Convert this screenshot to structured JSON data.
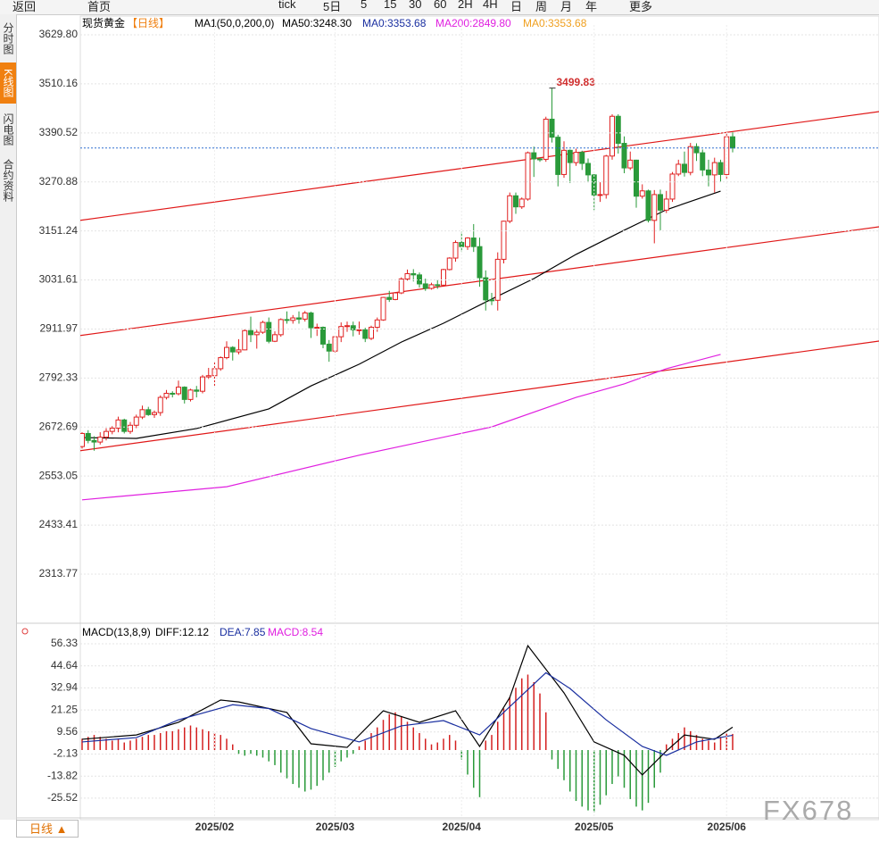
{
  "toolbar": [
    "返回",
    "首页",
    "tick",
    "5日",
    "5",
    "15",
    "30",
    "60",
    "2H",
    "4H",
    "日",
    "周",
    "月",
    "年",
    "更多"
  ],
  "sidebar": [
    "分时图",
    "K线图",
    "闪电图",
    "合约资料"
  ],
  "bottom_tab": "日线 ▲",
  "watermark": "FX678",
  "chart_data": [
    {
      "type": "candlestick",
      "title": "现货黄金",
      "period": "【日线】",
      "indicator": "MA1(50,0,200,0)",
      "legend": [
        {
          "name": "MA50:3248.30",
          "color": "#000000"
        },
        {
          "name": "MA0:3353.68",
          "color": "#1a2fa0"
        },
        {
          "name": "MA200:2849.80",
          "color": "#e020e0"
        },
        {
          "name": "MA0:3353.68",
          "color": "#f0a020"
        }
      ],
      "annotation": "3499.83",
      "up_color": "#e02020",
      "down_color": "#2a9a3a",
      "ylim": [
        2200.4,
        3653.8
      ],
      "yticks": [
        2313.77,
        2433.41,
        2553.05,
        2672.69,
        2792.33,
        2911.97,
        3031.61,
        3151.24,
        3270.88,
        3390.52,
        3510.16,
        {
          "value": 3629.8,
          "label": "3629.80"
        }
      ],
      "grid": true,
      "ohlc": [
        [
          2625,
          2660,
          2620,
          2657
        ],
        [
          2657,
          2665,
          2633,
          2640
        ],
        [
          2640,
          2650,
          2615,
          2636
        ],
        [
          2636,
          2660,
          2630,
          2648
        ],
        [
          2648,
          2670,
          2640,
          2662
        ],
        [
          2662,
          2675,
          2655,
          2670
        ],
        [
          2670,
          2698,
          2660,
          2690
        ],
        [
          2690,
          2693,
          2657,
          2662
        ],
        [
          2662,
          2685,
          2656,
          2677
        ],
        [
          2677,
          2703,
          2670,
          2697
        ],
        [
          2697,
          2725,
          2692,
          2715
        ],
        [
          2715,
          2722,
          2700,
          2703
        ],
        [
          2703,
          2713,
          2695,
          2708
        ],
        [
          2708,
          2750,
          2700,
          2745
        ],
        [
          2745,
          2763,
          2740,
          2755
        ],
        [
          2755,
          2760,
          2745,
          2754
        ],
        [
          2754,
          2786,
          2750,
          2770
        ],
        [
          2770,
          2772,
          2730,
          2740
        ],
        [
          2740,
          2766,
          2735,
          2763
        ],
        [
          2763,
          2773,
          2745,
          2760
        ],
        [
          2760,
          2800,
          2755,
          2795
        ],
        [
          2795,
          2817,
          2790,
          2798
        ],
        [
          2798,
          2830,
          2772,
          2815
        ],
        [
          2815,
          2845,
          2810,
          2842
        ],
        [
          2842,
          2882,
          2838,
          2867
        ],
        [
          2867,
          2870,
          2835,
          2856
        ],
        [
          2856,
          2887,
          2850,
          2861
        ],
        [
          2861,
          2911,
          2860,
          2908
        ],
        [
          2908,
          2942,
          2880,
          2898
        ],
        [
          2898,
          2910,
          2864,
          2904
        ],
        [
          2904,
          2932,
          2900,
          2928
        ],
        [
          2928,
          2940,
          2877,
          2882
        ],
        [
          2882,
          2906,
          2880,
          2898
        ],
        [
          2898,
          2938,
          2893,
          2935
        ],
        [
          2935,
          2955,
          2925,
          2933
        ],
        [
          2933,
          2946,
          2925,
          2939
        ],
        [
          2939,
          2955,
          2925,
          2936
        ],
        [
          2936,
          2956,
          2930,
          2951
        ],
        [
          2951,
          2954,
          2890,
          2915
        ],
        [
          2915,
          2925,
          2895,
          2916
        ],
        [
          2916,
          2918,
          2865,
          2875
        ],
        [
          2875,
          2885,
          2832,
          2858
        ],
        [
          2858,
          2895,
          2855,
          2893
        ],
        [
          2893,
          2928,
          2880,
          2918
        ],
        [
          2918,
          2930,
          2905,
          2920
        ],
        [
          2920,
          2930,
          2894,
          2910
        ],
        [
          2910,
          2930,
          2898,
          2910
        ],
        [
          2910,
          2915,
          2880,
          2889
        ],
        [
          2889,
          2920,
          2885,
          2916
        ],
        [
          2916,
          2940,
          2905,
          2934
        ],
        [
          2934,
          2990,
          2932,
          2989
        ],
        [
          2989,
          3005,
          2978,
          2984
        ],
        [
          2984,
          3002,
          2982,
          3000
        ],
        [
          3000,
          3038,
          2997,
          3034
        ],
        [
          3034,
          3057,
          3030,
          3047
        ],
        [
          3047,
          3058,
          3028,
          3044
        ],
        [
          3044,
          3050,
          3013,
          3022
        ],
        [
          3022,
          3035,
          3005,
          3011
        ],
        [
          3011,
          3025,
          3008,
          3020
        ],
        [
          3020,
          3032,
          3010,
          3019
        ],
        [
          3019,
          3059,
          3015,
          3057
        ],
        [
          3057,
          3087,
          3055,
          3085
        ],
        [
          3085,
          3128,
          3076,
          3123
        ],
        [
          3123,
          3149,
          3100,
          3113
        ],
        [
          3113,
          3136,
          3105,
          3134
        ],
        [
          3134,
          3168,
          3100,
          3113
        ],
        [
          3113,
          3135,
          3015,
          3037
        ],
        [
          3037,
          3055,
          2957,
          2983
        ],
        [
          2983,
          3000,
          2970,
          2982
        ],
        [
          2982,
          3099,
          2957,
          3082
        ],
        [
          3082,
          3176,
          3072,
          3175
        ],
        [
          3175,
          3245,
          3170,
          3237
        ],
        [
          3237,
          3245,
          3193,
          3210
        ],
        [
          3210,
          3233,
          3205,
          3229
        ],
        [
          3229,
          3345,
          3225,
          3342
        ],
        [
          3342,
          3357,
          3283,
          3327
        ],
        [
          3327,
          3330,
          3320,
          3326
        ],
        [
          3326,
          3430,
          3320,
          3424
        ],
        [
          3424,
          3499.83,
          3367,
          3380
        ],
        [
          3380,
          3386,
          3260,
          3289
        ],
        [
          3289,
          3370,
          3281,
          3348
        ],
        [
          3348,
          3350,
          3268,
          3318
        ],
        [
          3318,
          3352,
          3310,
          3343
        ],
        [
          3343,
          3347,
          3300,
          3316
        ],
        [
          3316,
          3328,
          3270,
          3288
        ],
        [
          3288,
          3290,
          3202,
          3239
        ],
        [
          3239,
          3270,
          3222,
          3240
        ],
        [
          3240,
          3337,
          3230,
          3334
        ],
        [
          3334,
          3436,
          3325,
          3431
        ],
        [
          3431,
          3436,
          3340,
          3365
        ],
        [
          3365,
          3382,
          3292,
          3305
        ],
        [
          3305,
          3345,
          3300,
          3324
        ],
        [
          3324,
          3325,
          3208,
          3236
        ],
        [
          3236,
          3265,
          3230,
          3249
        ],
        [
          3249,
          3252,
          3172,
          3177
        ],
        [
          3177,
          3251,
          3121,
          3240
        ],
        [
          3240,
          3252,
          3153,
          3202
        ],
        [
          3202,
          3249,
          3195,
          3229
        ],
        [
          3229,
          3295,
          3222,
          3290
        ],
        [
          3290,
          3325,
          3285,
          3314
        ],
        [
          3314,
          3345,
          3284,
          3294
        ],
        [
          3294,
          3366,
          3287,
          3357
        ],
        [
          3357,
          3365,
          3322,
          3342
        ],
        [
          3342,
          3350,
          3285,
          3300
        ],
        [
          3300,
          3325,
          3260,
          3288
        ],
        [
          3288,
          3330,
          3245,
          3318
        ],
        [
          3318,
          3325,
          3271,
          3289
        ],
        [
          3289,
          3392,
          3278,
          3381
        ],
        [
          3381,
          3392,
          3343,
          3353.68
        ]
      ],
      "series": [
        {
          "color": "#000000",
          "x": [
            0,
            9,
            19,
            31,
            38,
            46,
            53,
            60,
            68,
            75,
            82,
            90,
            97,
            106
          ],
          "values": [
            2647,
            2645,
            2669,
            2717,
            2773,
            2826,
            2880,
            2926,
            2985,
            3035,
            3094,
            3153,
            3203,
            3248.3
          ]
        },
        {
          "color": "#e020e0",
          "x": [
            0,
            24,
            46,
            68,
            82,
            90,
            97,
            106
          ],
          "values": [
            2495,
            2527,
            2604,
            2673,
            2745,
            2778,
            2815,
            2849.8
          ]
        }
      ],
      "trendlines": [
        {
          "color": "#e01818",
          "x": [
            -0.6,
            132.3
          ],
          "values": [
            3176.6,
            3442.4
          ]
        },
        {
          "color": "#e01818",
          "x": [
            -0.6,
            132.3
          ],
          "values": [
            2895.5,
            3161.3
          ]
        },
        {
          "color": "#e01818",
          "x": [
            -0.6,
            132.3
          ],
          "values": [
            2614.4,
            2882.4
          ]
        }
      ]
    },
    {
      "type": "macd",
      "title": "MACD(13,8,9)",
      "legend": [
        {
          "name": "DIFF:12.12",
          "color": "#000000"
        },
        {
          "name": "DEA:7.85",
          "color": "#1a2fa0"
        },
        {
          "name": "MACD:8.54",
          "color": "#e020e0"
        }
      ],
      "ylim": [
        -35.5,
        63.9
      ],
      "yticks": [
        -25.52,
        -13.82,
        -2.13,
        9.56,
        21.25,
        32.94,
        44.64,
        56.33
      ],
      "categories": [
        null,
        null,
        null,
        null,
        null,
        null,
        null,
        null,
        null,
        null,
        null,
        null,
        null,
        null,
        null,
        null,
        null,
        null,
        null,
        null,
        null,
        null,
        "2025/02",
        null,
        null,
        null,
        null,
        null,
        null,
        null,
        null,
        null,
        null,
        null,
        null,
        null,
        null,
        null,
        null,
        null,
        null,
        null,
        "2025/03",
        null,
        null,
        null,
        null,
        null,
        null,
        null,
        null,
        null,
        null,
        null,
        null,
        null,
        null,
        null,
        null,
        null,
        null,
        null,
        null,
        "2025/04",
        null,
        null,
        null,
        null,
        null,
        null,
        null,
        null,
        null,
        null,
        null,
        null,
        null,
        null,
        null,
        null,
        null,
        null,
        null,
        null,
        null,
        "2025/05",
        null,
        null,
        null,
        null,
        null,
        null,
        null,
        null,
        null,
        null,
        null,
        null,
        null,
        null,
        null,
        null,
        null,
        null,
        null,
        null,
        null,
        "2025/06",
        null
      ],
      "values": [
        6,
        7,
        8,
        7,
        6,
        5,
        6,
        4,
        5,
        6,
        7,
        8,
        8,
        9,
        10,
        10,
        11,
        12,
        13,
        12,
        11,
        10,
        9,
        8,
        6,
        3,
        -2,
        -3,
        -2,
        -3,
        -4,
        -6,
        -8,
        -12,
        -15,
        -18,
        -20,
        -22,
        -21,
        -19,
        -16,
        -12,
        -9,
        -6,
        -4,
        -2,
        2,
        5,
        9,
        12,
        16,
        19,
        20,
        18,
        15,
        12,
        9,
        6,
        3,
        4,
        6,
        8,
        5,
        -5,
        -13,
        -20,
        -25,
        5,
        8,
        15,
        22,
        28,
        33,
        38,
        40,
        36,
        30,
        20,
        -5,
        -10,
        -16,
        -22,
        -27,
        -30,
        -32,
        -33,
        -29,
        -24,
        -18,
        -14,
        -20,
        -26,
        -30,
        -32,
        -28,
        -20,
        -12,
        3,
        6,
        9,
        12,
        10,
        8,
        6,
        5,
        4,
        7,
        9,
        8.54
      ],
      "pos_color": "#d42020",
      "neg_color": "#2a9a3a",
      "series": [
        {
          "color": "#000000",
          "x": [
            0,
            9,
            16,
            23,
            26,
            34,
            38,
            44,
            50,
            56,
            62,
            66,
            71,
            74,
            80,
            85,
            90,
            93,
            97,
            100,
            105,
            108
          ],
          "values": [
            5.7,
            8,
            14.7,
            26.5,
            25.5,
            19.9,
            3.3,
            1.4,
            20.8,
            14.7,
            20.8,
            1.9,
            27.9,
            55.3,
            30.3,
            4.3,
            -2.8,
            -13.2,
            -0.5,
            8,
            5.7,
            12.12
          ]
        },
        {
          "color": "#1a2fa0",
          "x": [
            0,
            9,
            16,
            25,
            31,
            38,
            46,
            53,
            60,
            66,
            71,
            77,
            81,
            87,
            93,
            97,
            102,
            108
          ],
          "values": [
            4.3,
            6.6,
            16,
            24,
            22,
            11.4,
            4.3,
            12.8,
            15.6,
            8,
            23,
            41,
            32.6,
            16,
            1.9,
            -2.8,
            4.3,
            7.85
          ]
        }
      ]
    }
  ]
}
